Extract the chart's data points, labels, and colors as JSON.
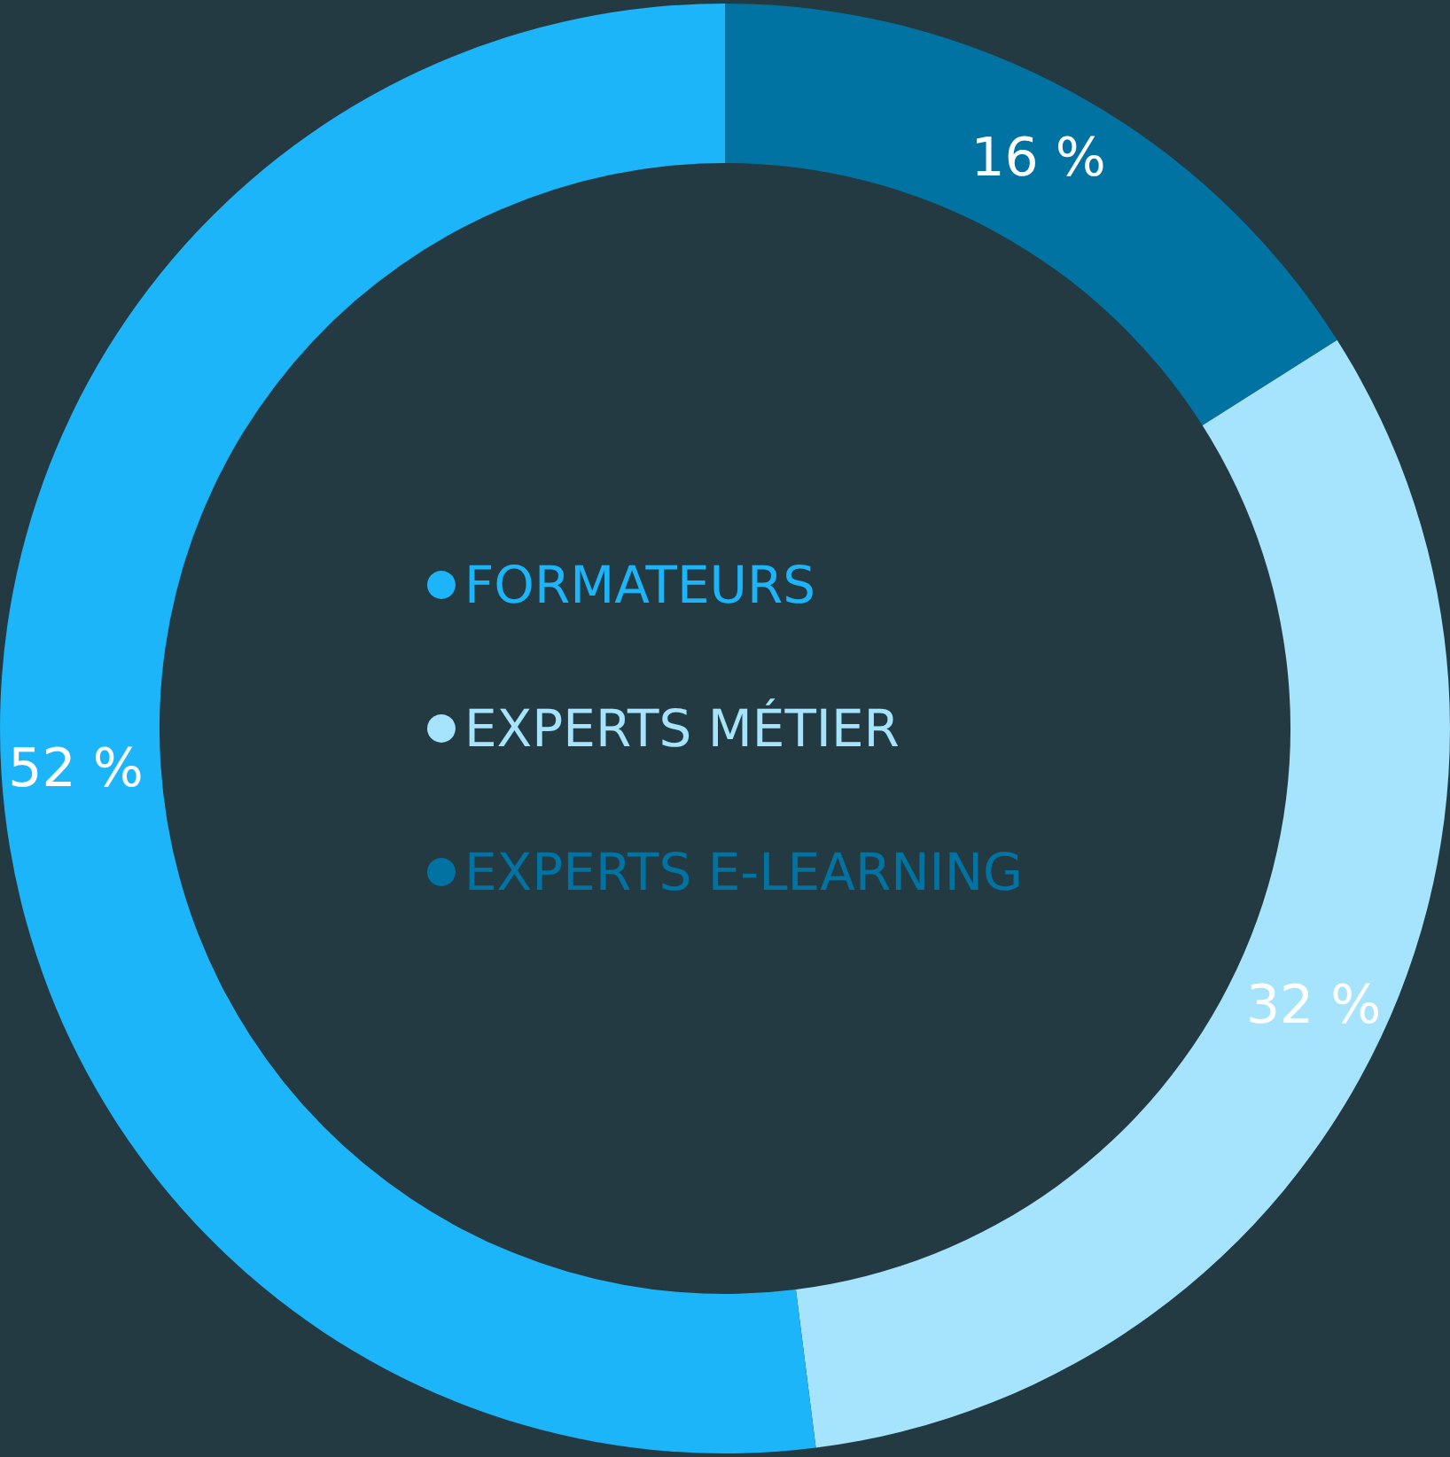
{
  "chart_data": {
    "type": "donut",
    "categories": [
      "EXPERTS E-LEARNING",
      "EXPERTS MÉTIER",
      "FORMATEURS"
    ],
    "values": [
      16,
      32,
      52
    ],
    "colors": [
      "#0073a3",
      "#a5e4fc",
      "#1db5fa"
    ],
    "value_labels": [
      "16 %",
      "32 %",
      "52 %"
    ],
    "legend": "center"
  }
}
